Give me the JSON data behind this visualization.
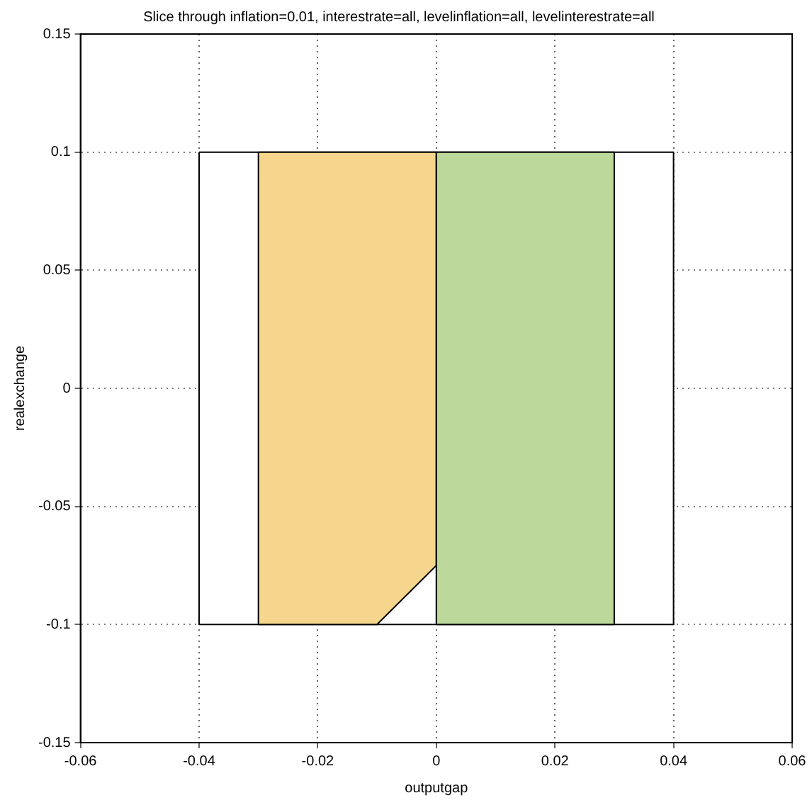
{
  "chart_data": {
    "type": "area",
    "title": "Slice through inflation=0.01, interestrate=all, levelinflation=all, levelinterestrate=all",
    "xlabel": "outputgap",
    "ylabel": "realexchange",
    "series": [
      {
        "color": "#ffffff",
        "x": [
          -0.04,
          0.04,
          0.04,
          -0.04,
          -0.04
        ],
        "values": [
          0.1,
          0.1,
          -0.1,
          -0.1,
          0.1
        ]
      },
      {
        "color": "#f5d68c",
        "x": [
          -0.03,
          0,
          0,
          -0.01,
          -0.03,
          -0.03
        ],
        "values": [
          0.1,
          0.1,
          -0.075,
          -0.1,
          -0.1,
          0.1
        ]
      },
      {
        "color": "#bcd89a",
        "x": [
          0,
          0.03,
          0.03,
          0,
          0
        ],
        "values": [
          0.1,
          0.1,
          -0.1,
          -0.1,
          0.1
        ]
      }
    ],
    "xlim": [
      -0.06,
      0.06
    ],
    "xticks": [
      -0.06,
      -0.04,
      -0.02,
      0,
      0.02,
      0.04,
      0.06
    ],
    "ylim": [
      -0.15,
      0.15
    ],
    "yticks": [
      -0.15,
      -0.1,
      -0.05,
      0,
      0.05,
      0.1,
      0.15
    ],
    "grid": true,
    "legend": false,
    "marker": "none",
    "line_style": "solid"
  }
}
